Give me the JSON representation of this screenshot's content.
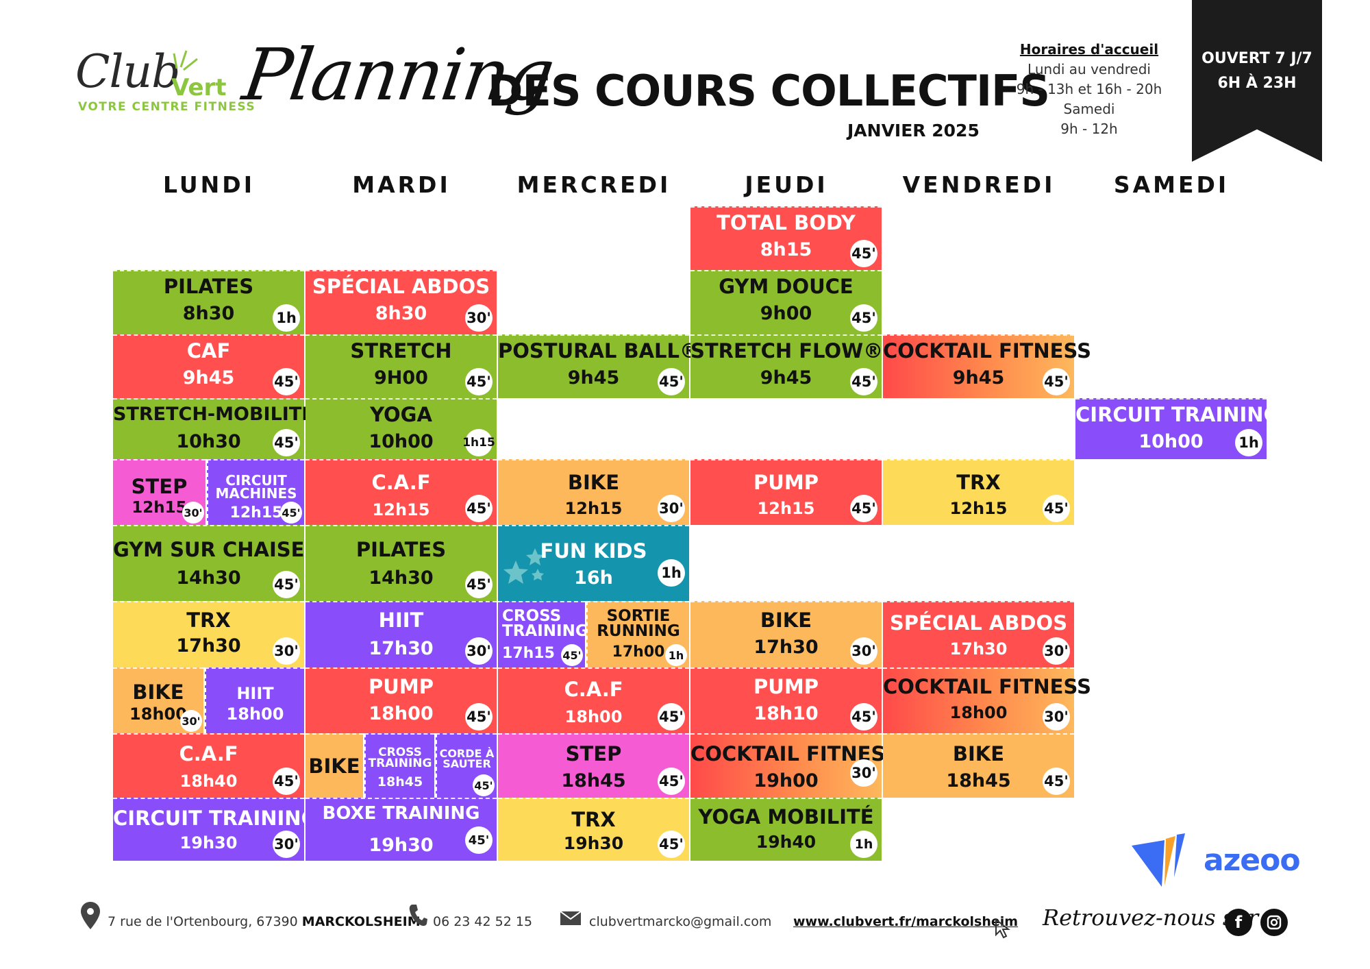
{
  "header": {
    "logo_club": "Club",
    "logo_vert": "Vert",
    "logo_sub": "VOTRE CENTRE FITNESS",
    "planning_word": "Planning",
    "title": "DES COURS COLLECTIFS",
    "subtitle": "JANVIER 2025",
    "hours_title": "Horaires d'accueil",
    "hours_lines": [
      "Lundi au vendredi",
      "9h - 13h et 16h - 20h",
      "Samedi",
      "9h - 12h"
    ],
    "open_line1": "OUVERT 7 J/7",
    "open_line2": "6H À 23H"
  },
  "days": [
    "LUNDI",
    "MARDI",
    "MERCREDI",
    "JEUDI",
    "VENDREDI",
    "SAMEDI"
  ],
  "classes": {
    "jeu_total_body": {
      "name": "TOTAL BODY",
      "time": "8h15",
      "dur": "45'"
    },
    "lun_pilates": {
      "name": "PILATES",
      "time": "8h30",
      "dur": "1h"
    },
    "mar_abdos": {
      "name": "SPÉCIAL ABDOS",
      "time": "8h30",
      "dur": "30'"
    },
    "jeu_gym_douce": {
      "name": "GYM DOUCE",
      "time": "9h00",
      "dur": "45'"
    },
    "lun_caf": {
      "name": "CAF",
      "time": "9h45",
      "dur": "45'"
    },
    "mar_stretch": {
      "name": "STRETCH",
      "time": "9H00",
      "dur": "45'"
    },
    "mer_postural": {
      "name": "POSTURAL BALL®",
      "time": "9h45",
      "dur": "45'"
    },
    "jeu_stretch_flow": {
      "name": "STRETCH FLOW®",
      "time": "9h45",
      "dur": "45'"
    },
    "ven_cocktail1": {
      "name": "COCKTAIL FITNESS",
      "time": "9h45",
      "dur": "45'"
    },
    "lun_stretch_mob": {
      "name": "STRETCH-MOBILITÉ",
      "time": "10h30",
      "dur": "45'"
    },
    "mar_yoga": {
      "name": "YOGA",
      "time": "10h00",
      "dur": "1h15"
    },
    "sam_circuit": {
      "name": "CIRCUIT TRAINING",
      "time": "10h00",
      "dur": "1h"
    },
    "lun_step": {
      "name": "STEP",
      "time": "12h15",
      "dur": "30'"
    },
    "lun_circuit_mach": {
      "name": "CIRCUIT MACHINES",
      "time": "12h15",
      "dur": "45'"
    },
    "mar_caf": {
      "name": "C.A.F",
      "time": "12h15",
      "dur": "45'"
    },
    "mer_bike": {
      "name": "BIKE",
      "time": "12h15",
      "dur": "30'"
    },
    "jeu_pump": {
      "name": "PUMP",
      "time": "12h15",
      "dur": "45'"
    },
    "ven_trx": {
      "name": "TRX",
      "time": "12h15",
      "dur": "45'"
    },
    "lun_gym_chaise": {
      "name": "GYM SUR CHAISE",
      "time": "14h30",
      "dur": "45'"
    },
    "mar_pilates": {
      "name": "PILATES",
      "time": "14h30",
      "dur": "45'"
    },
    "mer_fun_kids": {
      "name": "FUN KIDS",
      "time": "16h",
      "dur": "1h"
    },
    "lun_trx": {
      "name": "TRX",
      "time": "17h30",
      "dur": "30'"
    },
    "mar_hiit": {
      "name": "HIIT",
      "time": "17h30",
      "dur": "30'"
    },
    "mer_cross": {
      "name": "CROSS TRAINING",
      "time": "17h15",
      "dur": "45'"
    },
    "mer_sortie": {
      "name": "SORTIE RUNNING",
      "time": "17h00",
      "dur": "1h"
    },
    "jeu_bike": {
      "name": "BIKE",
      "time": "17h30",
      "dur": "30'"
    },
    "ven_abdos": {
      "name": "SPÉCIAL ABDOS",
      "time": "17h30",
      "dur": "30'"
    },
    "lun_bike": {
      "name": "BIKE",
      "time": "18h00",
      "dur": "30'"
    },
    "lun_hiit": {
      "name": "HIIT",
      "time": "18h00",
      "dur": ""
    },
    "mar_pump": {
      "name": "PUMP",
      "time": "18h00",
      "dur": "45'"
    },
    "mer_caf": {
      "name": "C.A.F",
      "time": "18h00",
      "dur": "45'"
    },
    "jeu_pump2": {
      "name": "PUMP",
      "time": "18h10",
      "dur": "45'"
    },
    "ven_cocktail2": {
      "name": "COCKTAIL FITNESS",
      "time": "18h00",
      "dur": "30'"
    },
    "lun_caf2": {
      "name": "C.A.F",
      "time": "18h40",
      "dur": "45'"
    },
    "mar_bike": {
      "name": "BIKE",
      "time": "",
      "dur": ""
    },
    "mar_cross": {
      "name": "CROSS TRAINING",
      "time": "18h45",
      "dur": ""
    },
    "mar_corde": {
      "name": "CORDE À SAUTER",
      "time": "",
      "dur": "45'"
    },
    "mer_step": {
      "name": "STEP",
      "time": "18h45",
      "dur": "45'"
    },
    "jeu_cocktail": {
      "name": "COCKTAIL FITNESS",
      "time": "19h00",
      "dur": "30'"
    },
    "ven_bike": {
      "name": "BIKE",
      "time": "18h45",
      "dur": "45'"
    },
    "lun_circuit": {
      "name": "CIRCUIT TRAINING",
      "time": "19h30",
      "dur": "30'"
    },
    "mar_boxe": {
      "name": "BOXE TRAINING",
      "time": "19h30",
      "dur": "45'"
    },
    "mer_trx": {
      "name": "TRX",
      "time": "19h30",
      "dur": "45'"
    },
    "jeu_yoga_mob": {
      "name": "YOGA MOBILITÉ",
      "time": "19h40",
      "dur": "1h"
    }
  },
  "footer": {
    "address_prefix": "7 rue de l'Ortenbourg, 67390 ",
    "address_city": "MARCKOLSHEIM",
    "phone": "06 23 42 52 15",
    "email": "clubvertmarcko@gmail.com",
    "website": "www.clubvert.fr/marckolsheim",
    "social_text": "Retrouvez-nous sur",
    "brand": "azeoo"
  },
  "icons": [
    "location-pin-icon",
    "phone-icon",
    "mail-icon",
    "cursor-icon",
    "facebook-icon",
    "instagram-icon",
    "stars-icon"
  ]
}
